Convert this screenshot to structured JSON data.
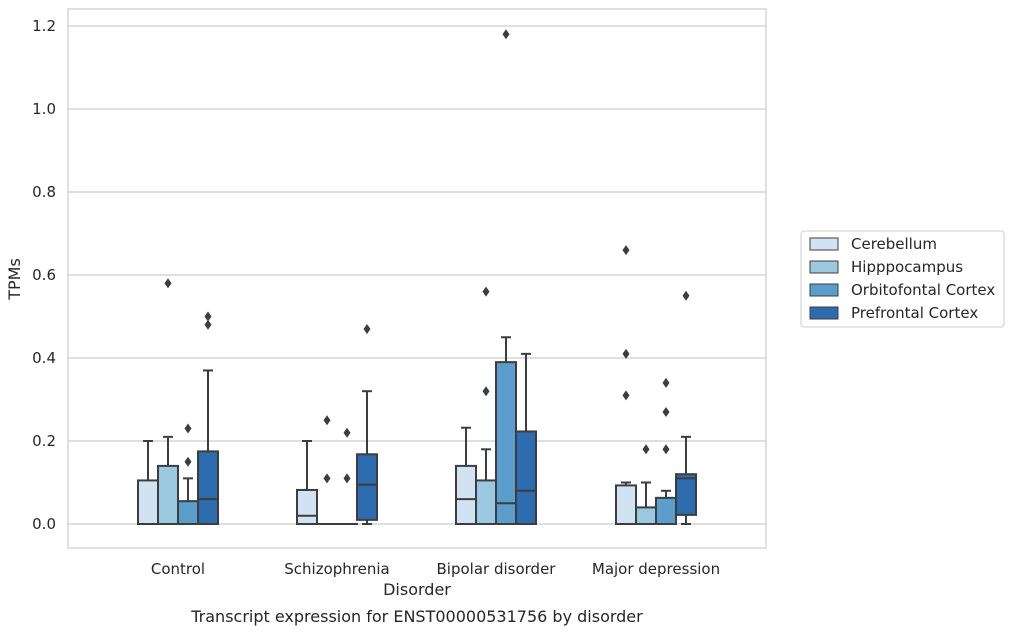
{
  "chart_data": {
    "type": "box",
    "title": "",
    "caption": "Transcript expression for ENST00000531756 by disorder",
    "xlabel": "Disorder",
    "ylabel": "TPMs",
    "ylim": [
      -0.057,
      1.242
    ],
    "yticks": [
      0.0,
      0.2,
      0.4,
      0.6,
      0.8,
      1.0,
      1.2
    ],
    "ytick_labels": [
      "0.0",
      "0.2",
      "0.4",
      "0.6",
      "0.8",
      "1.0",
      "1.2"
    ],
    "grid": "horizontal",
    "legend_position": "right",
    "categories": [
      "Control",
      "Schizophrenia",
      "Bipolar disorder",
      "Major depression"
    ],
    "series": [
      {
        "name": "Cerebellum",
        "color": "#d1e2f2",
        "boxes": [
          {
            "q1": 0.0,
            "median": 0.0,
            "q3": 0.105,
            "whisker_low": 0.0,
            "whisker_high": 0.2,
            "outliers": []
          },
          {
            "q1": 0.0,
            "median": 0.02,
            "q3": 0.082,
            "whisker_low": 0.0,
            "whisker_high": 0.2,
            "outliers": []
          },
          {
            "q1": 0.0,
            "median": 0.06,
            "q3": 0.14,
            "whisker_low": 0.0,
            "whisker_high": 0.232,
            "outliers": []
          },
          {
            "q1": 0.0,
            "median": 0.0,
            "q3": 0.093,
            "whisker_low": 0.0,
            "whisker_high": 0.1,
            "outliers": [
              0.31,
              0.41,
              0.66
            ]
          }
        ]
      },
      {
        "name": "Hipppocampus",
        "color": "#9ac8e0",
        "boxes": [
          {
            "q1": 0.0,
            "median": 0.0,
            "q3": 0.14,
            "whisker_low": 0.0,
            "whisker_high": 0.21,
            "outliers": [
              0.58
            ]
          },
          {
            "q1": 0.0,
            "median": 0.0,
            "q3": 0.0,
            "whisker_low": 0.0,
            "whisker_high": 0.0,
            "outliers": [
              0.11,
              0.25
            ]
          },
          {
            "q1": 0.0,
            "median": 0.0,
            "q3": 0.105,
            "whisker_low": 0.0,
            "whisker_high": 0.18,
            "outliers": [
              0.32,
              0.56
            ]
          },
          {
            "q1": 0.0,
            "median": 0.0,
            "q3": 0.04,
            "whisker_low": 0.0,
            "whisker_high": 0.1,
            "outliers": [
              0.18
            ]
          }
        ]
      },
      {
        "name": "Orbitofontal Cortex",
        "color": "#5b9ecb",
        "boxes": [
          {
            "q1": 0.0,
            "median": 0.0,
            "q3": 0.055,
            "whisker_low": 0.0,
            "whisker_high": 0.11,
            "outliers": [
              0.15,
              0.23
            ]
          },
          {
            "q1": 0.0,
            "median": 0.0,
            "q3": 0.0,
            "whisker_low": 0.0,
            "whisker_high": 0.0,
            "outliers": [
              0.11,
              0.22
            ]
          },
          {
            "q1": 0.0,
            "median": 0.05,
            "q3": 0.39,
            "whisker_low": 0.0,
            "whisker_high": 0.45,
            "outliers": [
              1.18
            ]
          },
          {
            "q1": 0.0,
            "median": 0.0,
            "q3": 0.063,
            "whisker_low": 0.0,
            "whisker_high": 0.08,
            "outliers": [
              0.18,
              0.27,
              0.34
            ]
          }
        ]
      },
      {
        "name": "Prefrontal Cortex",
        "color": "#2d6daf",
        "boxes": [
          {
            "q1": 0.0,
            "median": 0.06,
            "q3": 0.175,
            "whisker_low": 0.0,
            "whisker_high": 0.37,
            "outliers": [
              0.48,
              0.5
            ]
          },
          {
            "q1": 0.01,
            "median": 0.095,
            "q3": 0.168,
            "whisker_low": 0.0,
            "whisker_high": 0.32,
            "outliers": [
              0.47
            ]
          },
          {
            "q1": 0.0,
            "median": 0.08,
            "q3": 0.223,
            "whisker_low": 0.0,
            "whisker_high": 0.41,
            "outliers": []
          },
          {
            "q1": 0.022,
            "median": 0.11,
            "q3": 0.12,
            "whisker_low": 0.0,
            "whisker_high": 0.21,
            "outliers": [
              0.55
            ]
          }
        ]
      }
    ]
  }
}
